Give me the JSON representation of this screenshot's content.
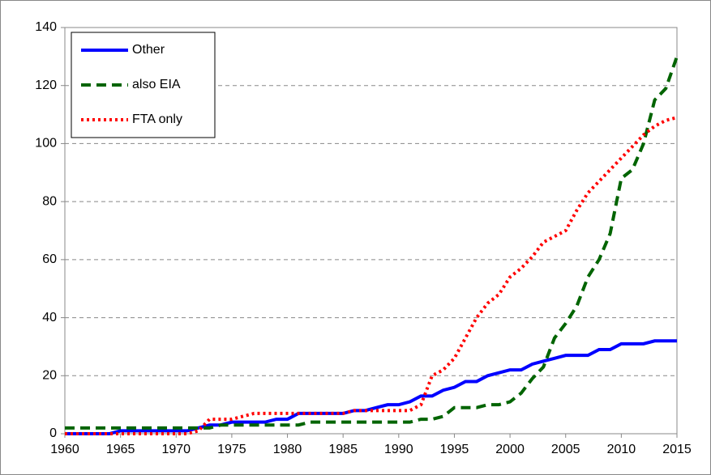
{
  "chart_data": {
    "type": "line",
    "x": [
      1960,
      1961,
      1962,
      1963,
      1964,
      1965,
      1966,
      1967,
      1968,
      1969,
      1970,
      1971,
      1972,
      1973,
      1974,
      1975,
      1976,
      1977,
      1978,
      1979,
      1980,
      1981,
      1982,
      1983,
      1984,
      1985,
      1986,
      1987,
      1988,
      1989,
      1990,
      1991,
      1992,
      1993,
      1994,
      1995,
      1996,
      1997,
      1998,
      1999,
      2000,
      2001,
      2002,
      2003,
      2004,
      2005,
      2006,
      2007,
      2008,
      2009,
      2010,
      2011,
      2012,
      2013,
      2014,
      2015
    ],
    "series": [
      {
        "name": "Other",
        "color": "#0000ff",
        "dash": "solid",
        "values": [
          0,
          0,
          0,
          0,
          0,
          1,
          1,
          1,
          1,
          1,
          1,
          1,
          2,
          3,
          3,
          4,
          4,
          4,
          4,
          5,
          5,
          7,
          7,
          7,
          7,
          7,
          8,
          8,
          9,
          10,
          10,
          11,
          13,
          13,
          15,
          16,
          18,
          18,
          20,
          21,
          22,
          22,
          24,
          25,
          26,
          27,
          27,
          27,
          29,
          29,
          31,
          31,
          31,
          32,
          32,
          32
        ]
      },
      {
        "name": "also EIA",
        "color": "#006400",
        "dash": "dashed",
        "values": [
          2,
          2,
          2,
          2,
          2,
          2,
          2,
          2,
          2,
          2,
          2,
          2,
          2,
          2,
          3,
          3,
          3,
          3,
          3,
          3,
          3,
          3,
          4,
          4,
          4,
          4,
          4,
          4,
          4,
          4,
          4,
          4,
          5,
          5,
          6,
          9,
          9,
          9,
          10,
          10,
          11,
          14,
          19,
          23,
          33,
          38,
          44,
          54,
          60,
          69,
          88,
          91,
          100,
          115,
          119,
          130
        ]
      },
      {
        "name": "FTA only",
        "color": "#ff0000",
        "dash": "dotted",
        "values": [
          0,
          0,
          0,
          0,
          0,
          0,
          0,
          0,
          0,
          0,
          0,
          0,
          1,
          5,
          5,
          5,
          6,
          7,
          7,
          7,
          7,
          7,
          7,
          7,
          7,
          7,
          8,
          8,
          8,
          8,
          8,
          8,
          10,
          20,
          22,
          26,
          33,
          40,
          45,
          48,
          54,
          57,
          61,
          66,
          68,
          70,
          77,
          83,
          87,
          91,
          95,
          99,
          103,
          106,
          108,
          109
        ]
      }
    ],
    "xlim": [
      1960,
      2015
    ],
    "xticks": [
      1960,
      1965,
      1970,
      1975,
      1980,
      1985,
      1990,
      1995,
      2000,
      2005,
      2010,
      2015
    ],
    "ylim": [
      0,
      140
    ],
    "yticks": [
      0,
      20,
      40,
      60,
      80,
      100,
      120,
      140
    ],
    "grid": true,
    "legend": "upper left"
  }
}
